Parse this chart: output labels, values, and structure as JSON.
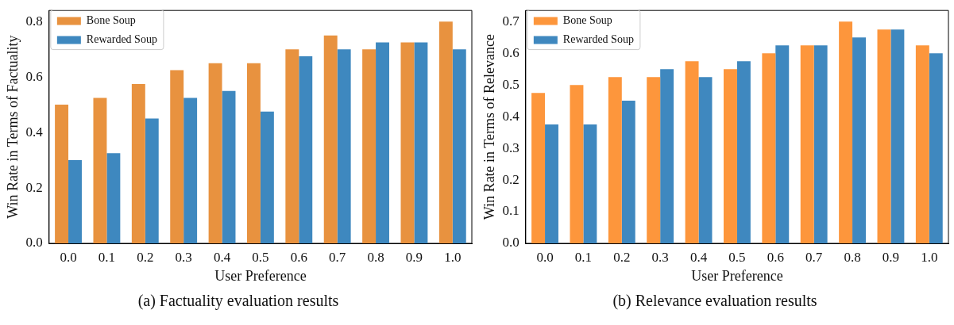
{
  "chart_data": [
    {
      "type": "bar",
      "xlabel": "User Preference",
      "ylabel": "Win Rate in Terms of Factuality",
      "categories": [
        "0.0",
        "0.1",
        "0.2",
        "0.3",
        "0.4",
        "0.5",
        "0.6",
        "0.7",
        "0.8",
        "0.9",
        "1.0"
      ],
      "series": [
        {
          "name": "Bone Soup",
          "color": "#e8923f",
          "values": [
            0.5,
            0.525,
            0.575,
            0.625,
            0.65,
            0.65,
            0.7,
            0.75,
            0.7,
            0.725,
            0.8
          ]
        },
        {
          "name": "Rewarded Soup",
          "color": "#3e88bf",
          "values": [
            0.3,
            0.325,
            0.45,
            0.525,
            0.55,
            0.475,
            0.675,
            0.7,
            0.725,
            0.725,
            0.7
          ]
        }
      ],
      "ylim": [
        0,
        0.84
      ],
      "yticks": [
        {
          "value": 0,
          "label": "0.0"
        },
        0.2,
        0.4,
        0.6,
        0.8
      ],
      "legend": "top left",
      "annotations": [
        "(a) Factuality evaluation results"
      ]
    },
    {
      "type": "bar",
      "xlabel": "User Preference",
      "ylabel": "Win Rate in Terms of Relevance",
      "categories": [
        "0.0",
        "0.1",
        "0.2",
        "0.3",
        "0.4",
        "0.5",
        "0.6",
        "0.7",
        "0.8",
        "0.9",
        "1.0"
      ],
      "series": [
        {
          "name": "Bone Soup",
          "color": "#fd963c",
          "values": [
            0.475,
            0.5,
            0.525,
            0.525,
            0.575,
            0.55,
            0.6,
            0.625,
            0.7,
            0.675,
            0.625
          ]
        },
        {
          "name": "Rewarded Soup",
          "color": "#3f88bf",
          "values": [
            0.375,
            0.375,
            0.45,
            0.55,
            0.525,
            0.575,
            0.625,
            0.625,
            0.65,
            0.675,
            0.6
          ]
        }
      ],
      "ylim": [
        0,
        0.735
      ],
      "yticks": [
        {
          "value": 0,
          "label": "0.0"
        },
        0.1,
        0.2,
        0.3,
        0.4,
        0.5,
        0.6,
        0.7
      ],
      "legend": "top left",
      "annotations": [
        "(b) Relevance evaluation results"
      ]
    }
  ]
}
